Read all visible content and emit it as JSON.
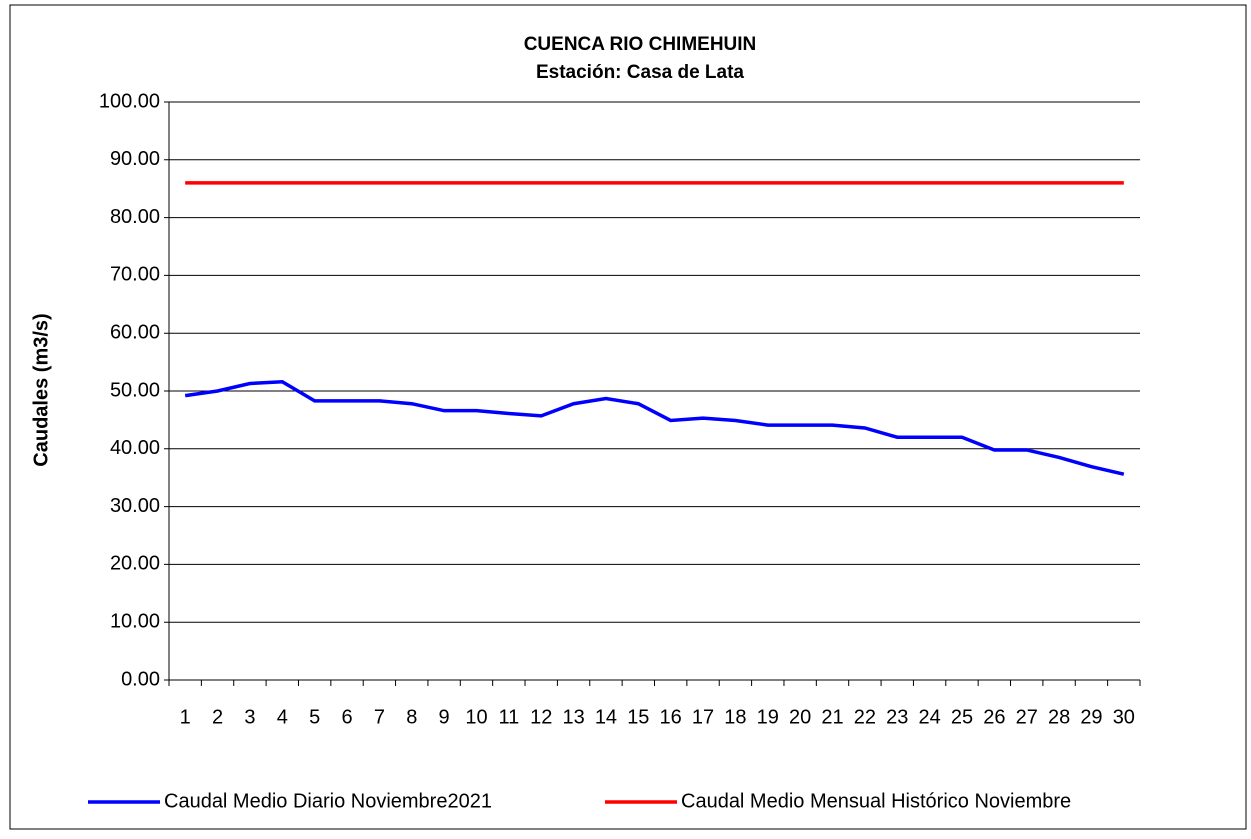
{
  "chart_data": {
    "type": "line",
    "title": "CUENCA RIO CHIMEHUIN",
    "subtitle": "Estación: Casa de Lata",
    "y_label": "Caudales (m3/s)",
    "categories": [
      "1",
      "2",
      "3",
      "4",
      "5",
      "6",
      "7",
      "8",
      "9",
      "10",
      "11",
      "12",
      "13",
      "14",
      "15",
      "16",
      "17",
      "18",
      "19",
      "20",
      "21",
      "22",
      "23",
      "24",
      "25",
      "26",
      "27",
      "28",
      "29",
      "30"
    ],
    "series": [
      {
        "name": "Caudal Medio Diario Noviembre2021",
        "color": "#0000ff",
        "values": [
          49.2,
          50.0,
          51.3,
          51.6,
          48.3,
          48.3,
          48.3,
          47.8,
          46.6,
          46.6,
          46.1,
          45.7,
          47.8,
          48.7,
          47.8,
          44.9,
          45.3,
          44.9,
          44.1,
          44.1,
          44.1,
          43.6,
          42.0,
          42.0,
          42.0,
          39.8,
          39.8,
          38.5,
          36.9,
          35.6
        ]
      },
      {
        "name": "Caudal Medio Mensual Histórico Noviembre",
        "color": "#ff0000",
        "values": [
          86.0,
          86.0,
          86.0,
          86.0,
          86.0,
          86.0,
          86.0,
          86.0,
          86.0,
          86.0,
          86.0,
          86.0,
          86.0,
          86.0,
          86.0,
          86.0,
          86.0,
          86.0,
          86.0,
          86.0,
          86.0,
          86.0,
          86.0,
          86.0,
          86.0,
          86.0,
          86.0,
          86.0,
          86.0,
          86.0
        ]
      }
    ],
    "ylim": [
      0,
      100
    ],
    "yticks": [
      {
        "value": 0,
        "label": "0.00"
      },
      {
        "value": 10,
        "label": "10.00"
      },
      {
        "value": 20,
        "label": "20.00"
      },
      {
        "value": 30,
        "label": "30.00"
      },
      {
        "value": 40,
        "label": "40.00"
      },
      {
        "value": 50,
        "label": "50.00"
      },
      {
        "value": 60,
        "label": "60.00"
      },
      {
        "value": 70,
        "label": "70.00"
      },
      {
        "value": 80,
        "label": "80.00"
      },
      {
        "value": 90,
        "label": "90.00"
      },
      {
        "value": 100,
        "label": "100.00"
      }
    ],
    "grid": true,
    "legend": "bottom"
  }
}
